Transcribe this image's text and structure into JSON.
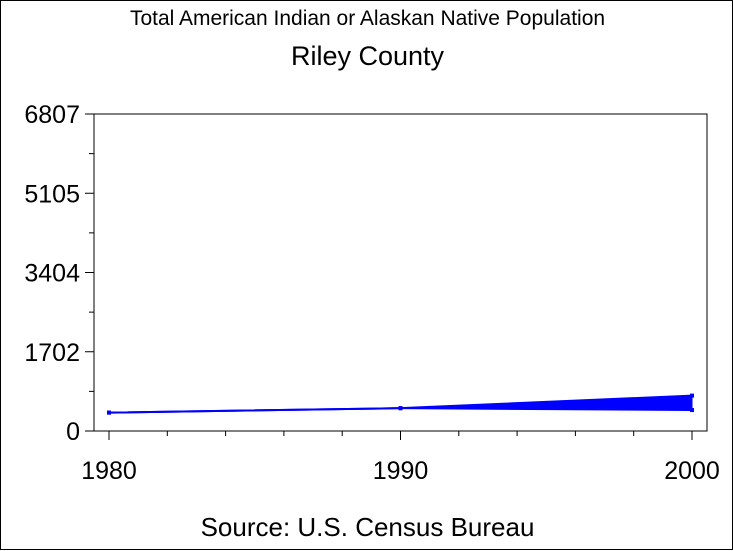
{
  "chart_data": {
    "type": "line",
    "title": "Total American Indian or Alaskan Native Population",
    "subtitle": "Riley County",
    "source": "Source: U.S. Census Bureau",
    "x": [
      1980,
      1990,
      2000
    ],
    "series": [
      {
        "values": [
          395,
          490,
          760
        ]
      },
      {
        "values": [
          395,
          490,
          450
        ]
      }
    ],
    "xlim": [
      1980,
      2000
    ],
    "ylim": [
      0,
      6807
    ],
    "x_ticks": [
      "1980",
      "1990",
      "2000"
    ],
    "y_ticks": [
      "0",
      "1702",
      "3404",
      "5105",
      "6807"
    ],
    "colors": {
      "series": "#0000ff",
      "axes": "#000000"
    },
    "grid": false
  }
}
